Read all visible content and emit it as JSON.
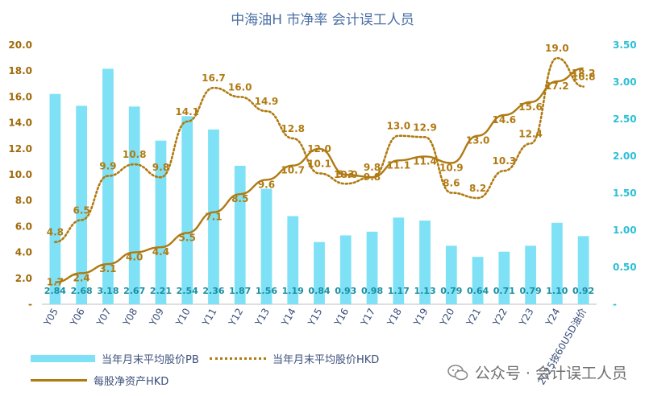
{
  "chart_data": {
    "type": "bar",
    "title": "中海油H 市净率  会计误工人员",
    "categories": [
      "Y05",
      "Y06",
      "Y07",
      "Y08",
      "Y09",
      "Y10",
      "Y11",
      "Y12",
      "Y13",
      "Y14",
      "Y15",
      "Y16",
      "Y17",
      "Y18",
      "Y19",
      "Y20",
      "Y21",
      "Y22",
      "Y23",
      "Y24",
      "2025按60USD油价"
    ],
    "left_axis": {
      "ylim": [
        0,
        20
      ],
      "ticks": [
        "-",
        "2.0",
        "4.0",
        "6.0",
        "8.0",
        "10.0",
        "12.0",
        "14.0",
        "16.0",
        "18.0",
        "20.0"
      ],
      "color": "#a06a0a"
    },
    "right_axis": {
      "ylim": [
        0,
        3.5
      ],
      "ticks": [
        "-",
        "0.50",
        "1.00",
        "1.50",
        "2.00",
        "2.50",
        "3.00",
        "3.50"
      ],
      "color": "#2bbfd6"
    },
    "grid": false,
    "series": [
      {
        "name": "当年月末平均股价PB",
        "type": "bar",
        "axis": "right",
        "color": "#7fe1f5",
        "label_color": "#1a8fa3",
        "values": [
          2.84,
          2.68,
          3.18,
          2.67,
          2.21,
          2.54,
          2.36,
          1.87,
          1.56,
          1.19,
          0.84,
          0.93,
          0.98,
          1.17,
          1.13,
          0.79,
          0.64,
          0.71,
          0.79,
          1.1,
          0.92
        ],
        "labels": [
          "2.84",
          "2.68",
          "3.18",
          "2.67",
          "2.21",
          "2.54",
          "2.36",
          "1.87",
          "1.56",
          "1.19",
          "0.84",
          "0.93",
          "0.98",
          "1.17",
          "1.13",
          "0.79",
          "0.64",
          "0.71",
          "0.79",
          "1.10",
          "0.92"
        ]
      },
      {
        "name": "当年月末平均股价HKD",
        "type": "line",
        "style": "dotted",
        "axis": "left",
        "color": "#b07a12",
        "values": [
          4.8,
          6.5,
          9.9,
          10.8,
          9.8,
          14.1,
          16.7,
          16.0,
          14.9,
          12.8,
          10.1,
          9.3,
          9.8,
          13.0,
          12.9,
          8.6,
          8.2,
          10.3,
          12.4,
          19.0,
          16.8
        ],
        "labels": [
          "4.8",
          "6.5",
          "9.9",
          "10.8",
          "9.8",
          "14.1",
          "16.7",
          "16.0",
          "14.9",
          "12.8",
          "10.1",
          "9.3",
          "9.8",
          "13.0",
          "12.9",
          "8.6",
          "8.2",
          "10.3",
          "12.4",
          "19.0",
          "16.8"
        ]
      },
      {
        "name": "每股净资产HKD",
        "type": "line",
        "style": "solid",
        "axis": "left",
        "color": "#b07a12",
        "values": [
          1.7,
          2.4,
          3.1,
          4.0,
          4.4,
          5.5,
          7.1,
          8.5,
          9.6,
          10.7,
          12.0,
          10.0,
          9.8,
          11.1,
          11.4,
          10.9,
          13.0,
          14.6,
          15.6,
          17.2,
          18.2
        ],
        "labels": [
          "1.7",
          "2.4",
          "3.1",
          "4.0",
          "4.4",
          "5.5",
          "7.1",
          "8.5",
          "9.6",
          "10.7",
          "12.0",
          "10.0",
          "9.8",
          "11.1",
          "11.4",
          "10.9",
          "13.0",
          "14.6",
          "15.6",
          "17.2",
          "18.2"
        ]
      }
    ],
    "legend": {
      "placement": "bottom"
    }
  },
  "watermark": {
    "text": "公众号 · 会计误工人员",
    "icon": "wechat-icon"
  }
}
